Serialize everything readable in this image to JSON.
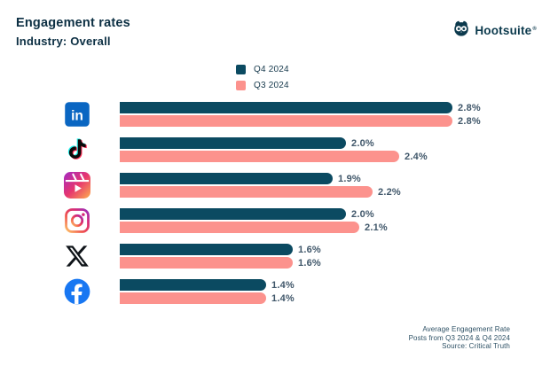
{
  "header": {
    "title": "Engagement rates",
    "subtitle": "Industry: Overall"
  },
  "brand": {
    "name": "Hootsuite",
    "registered": "®",
    "logo_icon": "hootsuite-owl-icon",
    "color": "#0c3a4d"
  },
  "legend": [
    {
      "label": "Q4 2024",
      "color": "#0b4a61"
    },
    {
      "label": "Q3 2024",
      "color": "#fc928d"
    }
  ],
  "chart_data": {
    "type": "bar",
    "orientation": "horizontal",
    "title": "Engagement rates",
    "subtitle": "Industry: Overall",
    "categories": [
      "LinkedIn",
      "TikTok",
      "Instagram Reels",
      "Instagram",
      "X",
      "Facebook"
    ],
    "icons": [
      "linkedin-icon",
      "tiktok-icon",
      "instagram-reels-icon",
      "instagram-icon",
      "x-icon",
      "facebook-icon"
    ],
    "series": [
      {
        "name": "Q4 2024",
        "color": "#0b4a61",
        "values": [
          2.8,
          2.0,
          1.9,
          2.0,
          1.6,
          1.4
        ]
      },
      {
        "name": "Q3 2024",
        "color": "#fc928d",
        "values": [
          2.8,
          2.4,
          2.2,
          2.1,
          1.6,
          1.4
        ]
      }
    ],
    "value_labels": [
      [
        "2.8%",
        "2.8%"
      ],
      [
        "2.0%",
        "2.4%"
      ],
      [
        "1.9%",
        "2.2%"
      ],
      [
        "2.0%",
        "2.1%"
      ],
      [
        "1.6%",
        "1.6%"
      ],
      [
        "1.4%",
        "1.4%"
      ]
    ],
    "unit": "%",
    "xlim": [
      0,
      2.8
    ],
    "grid": false,
    "legend_position": "top-center"
  },
  "footer": {
    "lines": [
      "Average Engagement Rate",
      "Posts from Q3 2024 & Q4 2024",
      "Source: Critical Truth"
    ]
  }
}
